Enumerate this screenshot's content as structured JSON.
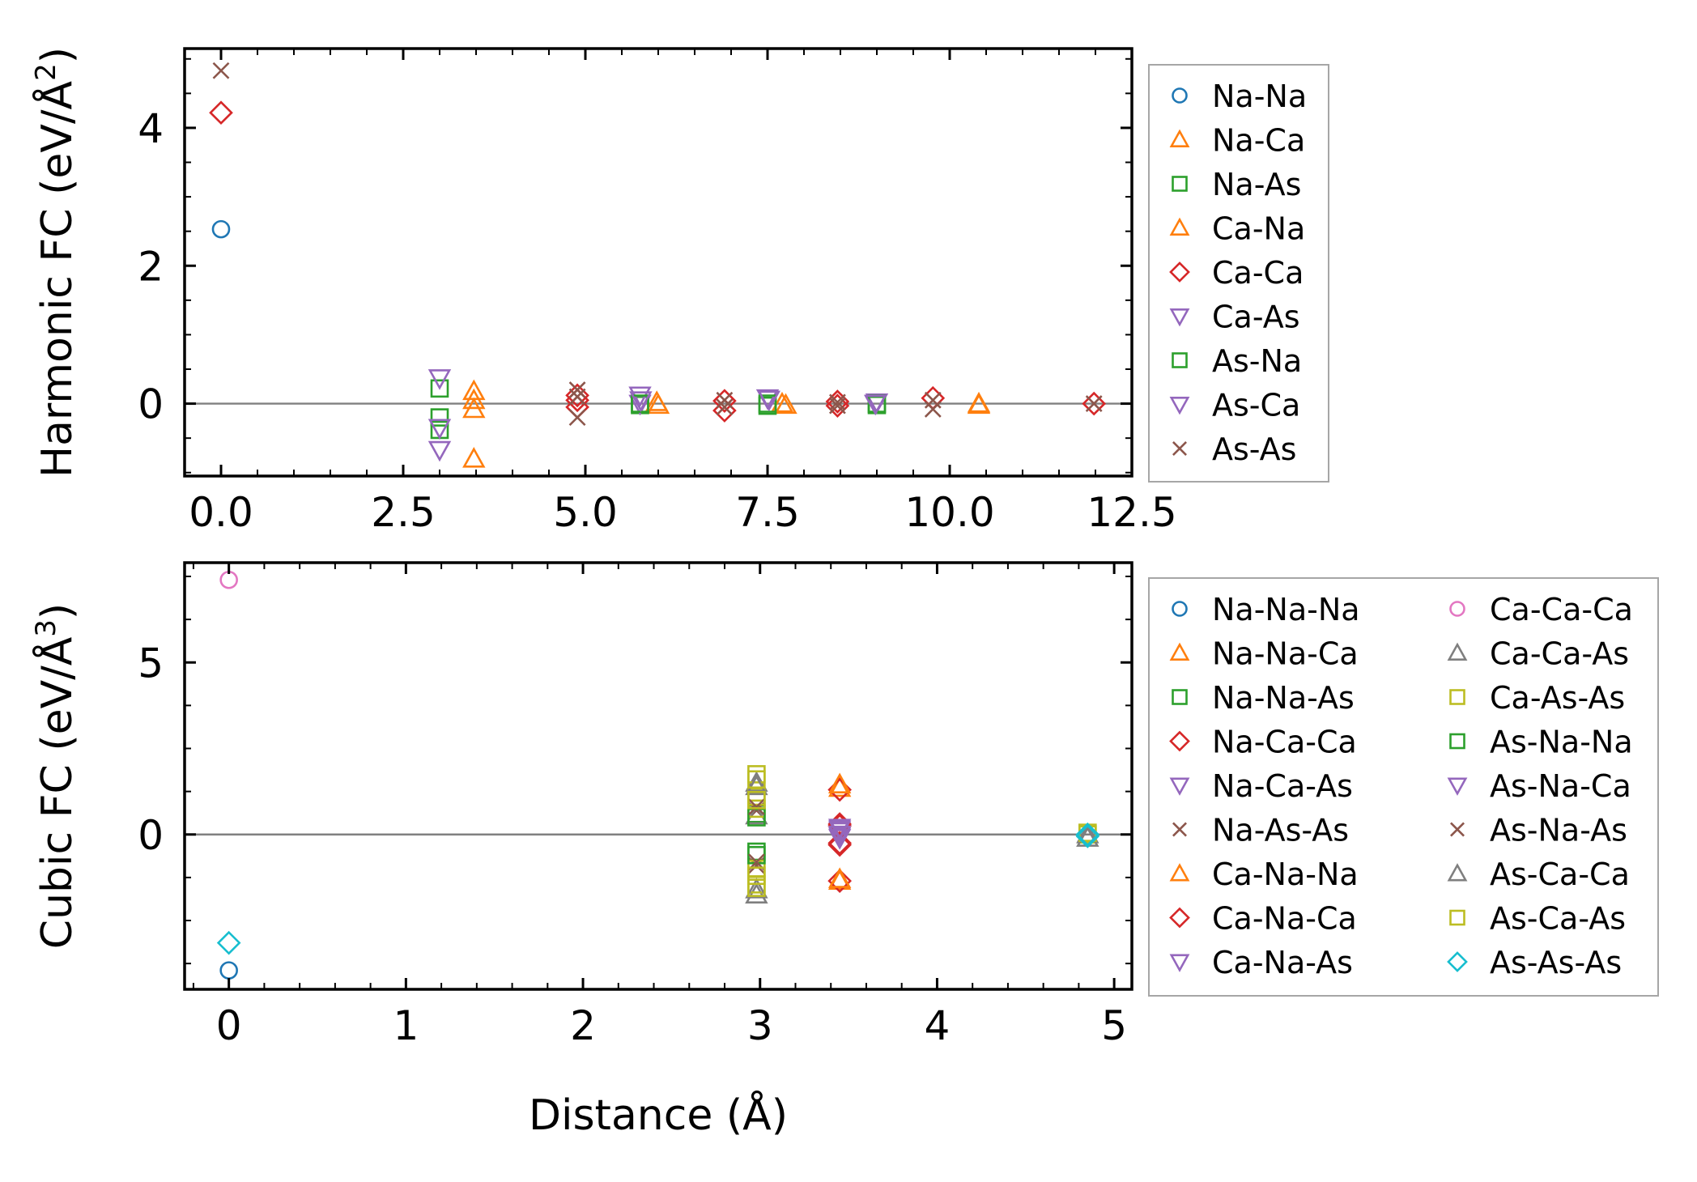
{
  "colors": {
    "blue": "#1f77b4",
    "orange": "#ff7f0e",
    "green": "#2ca02c",
    "red": "#d62728",
    "purple": "#9467bd",
    "brown": "#8c564b",
    "pink": "#e377c2",
    "gray": "#7f7f7f",
    "olive": "#bcbd22",
    "cyan": "#17becf"
  },
  "chart_data": [
    {
      "type": "scatter",
      "title": "",
      "xlabel": "",
      "ylabel": "Harmonic FC (eV/Å",
      "ylabel_sup": "2",
      "ylabel_end": ")",
      "xlim": [
        -0.5,
        12.5
      ],
      "ylim": [
        -1.05,
        5.15
      ],
      "xticks": [
        0.0,
        2.5,
        5.0,
        7.5,
        10.0,
        12.5
      ],
      "xtick_labels": [
        "0.0",
        "2.5",
        "5.0",
        "7.5",
        "10.0",
        "12.5"
      ],
      "yticks": [
        0,
        2,
        4
      ],
      "ytick_labels": [
        "0",
        "2",
        "4"
      ],
      "zero_line": true,
      "legend_position": "outside-right",
      "legend_columns": 1,
      "series": [
        {
          "name": "Na-Na",
          "marker": "circle",
          "color": "blue",
          "points": [
            [
              0,
              2.53
            ]
          ]
        },
        {
          "name": "Na-Ca",
          "marker": "triangle-up",
          "color": "orange",
          "points": [
            [
              3.47,
              0.18
            ],
            [
              3.47,
              0.05
            ],
            [
              3.47,
              -0.08
            ],
            [
              3.47,
              -0.8
            ],
            [
              6.0,
              -0.02
            ],
            [
              7.75,
              -0.02
            ],
            [
              10.4,
              -0.02
            ]
          ]
        },
        {
          "name": "Na-As",
          "marker": "square",
          "color": "green",
          "points": [
            [
              3.0,
              0.22
            ],
            [
              3.0,
              -0.2
            ],
            [
              3.0,
              -0.38
            ],
            [
              5.75,
              -0.02
            ],
            [
              7.5,
              -0.03
            ],
            [
              9.0,
              -0.02
            ]
          ]
        },
        {
          "name": "Ca-Na",
          "marker": "triangle-up",
          "color": "orange",
          "points": [
            [
              5.98,
              0.02
            ],
            [
              7.7,
              0.0
            ],
            [
              10.4,
              0.0
            ]
          ]
        },
        {
          "name": "Ca-Ca",
          "marker": "diamond",
          "color": "red",
          "points": [
            [
              0,
              4.22
            ],
            [
              4.89,
              0.12
            ],
            [
              4.89,
              -0.05
            ],
            [
              4.89,
              0.05
            ],
            [
              6.91,
              0.04
            ],
            [
              6.91,
              -0.1
            ],
            [
              8.46,
              0.03
            ],
            [
              8.46,
              -0.03
            ],
            [
              9.77,
              0.08
            ],
            [
              11.98,
              0.0
            ]
          ]
        },
        {
          "name": "Ca-As",
          "marker": "triangle-down",
          "color": "purple",
          "points": [
            [
              3.0,
              0.37
            ],
            [
              3.0,
              -0.35
            ],
            [
              3.0,
              -0.67
            ],
            [
              5.75,
              0.12
            ],
            [
              5.75,
              0.0
            ],
            [
              7.5,
              0.08
            ],
            [
              9.0,
              0.02
            ]
          ]
        },
        {
          "name": "As-Na",
          "marker": "square",
          "color": "green",
          "points": [
            [
              5.75,
              0.0
            ],
            [
              7.5,
              0.0
            ],
            [
              9.0,
              0.0
            ]
          ]
        },
        {
          "name": "As-Ca",
          "marker": "triangle-down",
          "color": "purple",
          "points": [
            [
              5.76,
              0.05
            ],
            [
              7.52,
              0.06
            ],
            [
              8.98,
              0.0
            ]
          ]
        },
        {
          "name": "As-As",
          "marker": "x",
          "color": "brown",
          "points": [
            [
              0,
              4.83
            ],
            [
              4.89,
              0.2
            ],
            [
              4.89,
              -0.2
            ],
            [
              4.89,
              0.1
            ],
            [
              6.91,
              0.05
            ],
            [
              6.91,
              -0.05
            ],
            [
              8.46,
              0.02
            ],
            [
              8.46,
              -0.03
            ],
            [
              9.77,
              0.05
            ],
            [
              9.77,
              -0.08
            ],
            [
              11.98,
              0.0
            ]
          ]
        }
      ]
    },
    {
      "type": "scatter",
      "title": "",
      "xlabel": "Distance (Å)",
      "ylabel": "Cubic FC (eV/Å",
      "ylabel_sup": "3",
      "ylabel_end": ")",
      "xlim": [
        -0.25,
        5.1
      ],
      "ylim": [
        -4.5,
        7.9
      ],
      "xticks": [
        0,
        1,
        2,
        3,
        4,
        5
      ],
      "xtick_labels": [
        "0",
        "1",
        "2",
        "3",
        "4",
        "5"
      ],
      "yticks": [
        0,
        5
      ],
      "ytick_labels": [
        "0",
        "5"
      ],
      "zero_line": true,
      "legend_position": "outside-right",
      "legend_columns": 2,
      "series": [
        {
          "name": "Na-Na-Na",
          "marker": "circle",
          "color": "blue",
          "points": [
            [
              0,
              -3.95
            ]
          ]
        },
        {
          "name": "Na-Na-Ca",
          "marker": "triangle-up",
          "color": "orange",
          "points": [
            [
              3.45,
              1.35
            ],
            [
              3.45,
              -1.35
            ]
          ]
        },
        {
          "name": "Na-Na-As",
          "marker": "square",
          "color": "green",
          "points": [
            [
              2.98,
              0.6
            ],
            [
              2.98,
              -0.5
            ]
          ]
        },
        {
          "name": "Na-Ca-Ca",
          "marker": "diamond",
          "color": "red",
          "points": [
            [
              3.45,
              1.3
            ],
            [
              3.45,
              0.25
            ],
            [
              3.45,
              -0.3
            ],
            [
              3.45,
              -1.35
            ]
          ]
        },
        {
          "name": "Na-Ca-As",
          "marker": "triangle-down",
          "color": "purple",
          "points": [
            [
              3.45,
              0.1
            ],
            [
              3.45,
              -0.05
            ]
          ]
        },
        {
          "name": "Na-As-As",
          "marker": "x",
          "color": "brown",
          "points": [
            [
              2.98,
              0.7
            ],
            [
              2.98,
              -0.9
            ]
          ]
        },
        {
          "name": "Ca-Na-Na",
          "marker": "triangle-up",
          "color": "orange",
          "points": [
            [
              3.45,
              1.45
            ],
            [
              3.45,
              -1.3
            ]
          ]
        },
        {
          "name": "Ca-Na-Ca",
          "marker": "diamond",
          "color": "red",
          "points": [
            [
              3.45,
              0.3
            ],
            [
              3.45,
              -0.25
            ]
          ]
        },
        {
          "name": "Ca-Na-As",
          "marker": "triangle-down",
          "color": "purple",
          "points": [
            [
              3.45,
              0.2
            ],
            [
              3.45,
              0.0
            ]
          ]
        },
        {
          "name": "Ca-Ca-Ca",
          "marker": "circle",
          "color": "pink",
          "points": [
            [
              0,
              7.4
            ]
          ]
        },
        {
          "name": "Ca-Ca-As",
          "marker": "triangle-up",
          "color": "gray",
          "points": [
            [
              2.98,
              1.5
            ],
            [
              2.98,
              0.55
            ],
            [
              2.98,
              -1.75
            ],
            [
              4.85,
              0.0
            ]
          ]
        },
        {
          "name": "Ca-As-As",
          "marker": "square",
          "color": "olive",
          "points": [
            [
              2.98,
              1.75
            ],
            [
              2.98,
              1.1
            ],
            [
              2.98,
              0.75
            ],
            [
              2.98,
              -1.0
            ],
            [
              2.98,
              -1.45
            ],
            [
              4.85,
              0.0
            ]
          ]
        },
        {
          "name": "As-Na-Na",
          "marker": "square",
          "color": "green",
          "points": [
            [
              2.98,
              0.5
            ],
            [
              2.98,
              -0.6
            ]
          ]
        },
        {
          "name": "As-Na-Ca",
          "marker": "triangle-down",
          "color": "purple",
          "points": [
            [
              3.45,
              0.15
            ],
            [
              3.45,
              -0.1
            ]
          ]
        },
        {
          "name": "As-Na-As",
          "marker": "x",
          "color": "brown",
          "points": [
            [
              2.98,
              0.8
            ],
            [
              2.98,
              -0.8
            ]
          ]
        },
        {
          "name": "As-Ca-Ca",
          "marker": "triangle-up",
          "color": "gray",
          "points": [
            [
              2.98,
              1.4
            ],
            [
              2.98,
              -1.6
            ],
            [
              4.85,
              -0.1
            ]
          ]
        },
        {
          "name": "As-Ca-As",
          "marker": "square",
          "color": "olive",
          "points": [
            [
              2.98,
              1.6
            ],
            [
              2.98,
              1.0
            ],
            [
              2.98,
              -1.2
            ],
            [
              2.98,
              -1.55
            ],
            [
              4.85,
              0.05
            ]
          ]
        },
        {
          "name": "As-As-As",
          "marker": "diamond",
          "color": "cyan",
          "points": [
            [
              0,
              -3.15
            ],
            [
              4.85,
              0.0
            ],
            [
              4.85,
              -0.05
            ]
          ]
        }
      ]
    }
  ]
}
